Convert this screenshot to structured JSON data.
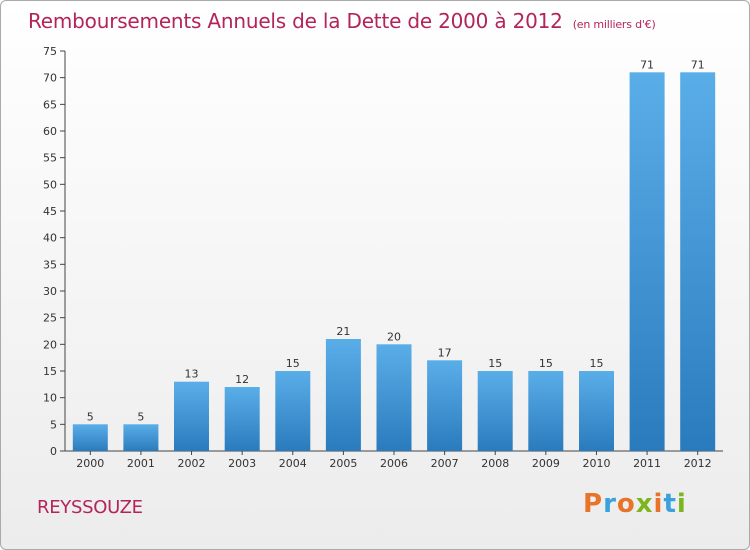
{
  "header": {
    "title": "Remboursements Annuels de la Dette de 2000 à 2012",
    "unit": "(en milliers d'€)"
  },
  "footer": {
    "commune": "REYSSOUZE",
    "logo_text": "Proxiti"
  },
  "colors": {
    "bar": "#3f97da",
    "bar_dark": "#2a7bbd",
    "title": "#b3245a"
  },
  "chart_data": {
    "type": "bar",
    "title": "Remboursements Annuels de la Dette de 2000 à 2012",
    "subtitle": "(en milliers d'€)",
    "categories": [
      "2000",
      "2001",
      "2002",
      "2003",
      "2004",
      "2005",
      "2006",
      "2007",
      "2008",
      "2009",
      "2010",
      "2011",
      "2012"
    ],
    "values": [
      5,
      5,
      13,
      12,
      15,
      21,
      20,
      17,
      15,
      15,
      15,
      71,
      71
    ],
    "ylim": [
      0,
      75
    ],
    "yticks": [
      0,
      5,
      10,
      15,
      20,
      25,
      30,
      35,
      40,
      45,
      50,
      55,
      60,
      65,
      70,
      75
    ],
    "grid": false,
    "data_labels": true
  }
}
